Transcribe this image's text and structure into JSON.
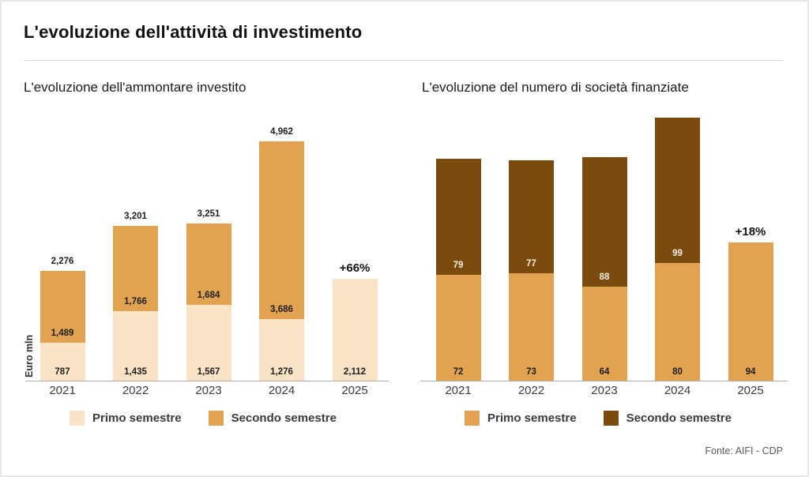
{
  "card": {
    "title": "L'evoluzione dell'attività di investimento",
    "source": "Fonte: AIFI - CDP"
  },
  "colors": {
    "cream": "#FBE4C5",
    "orange": "#E1A351",
    "brown": "#7B4A0D"
  },
  "chart_data": [
    {
      "type": "bar",
      "stacked": true,
      "title": "L'evoluzione dell'ammontare investito",
      "xlabel": "",
      "ylabel": "Euro mln",
      "categories": [
        "2021",
        "2022",
        "2023",
        "2024",
        "2025"
      ],
      "series": [
        {
          "name": "Primo semestre",
          "color": "#FBE4C5",
          "values": [
            787,
            1435,
            1567,
            1276,
            2112
          ],
          "labels": [
            "787",
            "1,435",
            "1,567",
            "1,276",
            "2,112"
          ]
        },
        {
          "name": "Secondo semestre",
          "color": "#E1A351",
          "values": [
            1489,
            1766,
            1684,
            3686,
            null
          ],
          "labels": [
            "1,489",
            "1,766",
            "1,684",
            "3,686",
            null
          ]
        }
      ],
      "totals": [
        "2,276",
        "3,201",
        "3,251",
        "4,962",
        null
      ],
      "annotations": [
        {
          "category": "2025",
          "text": "+66%"
        }
      ],
      "legend_position": "bottom",
      "grid": false
    },
    {
      "type": "bar",
      "stacked": true,
      "title": "L'evoluzione del numero di società finanziate",
      "xlabel": "",
      "ylabel": "",
      "categories": [
        "2021",
        "2022",
        "2023",
        "2024",
        "2025"
      ],
      "series": [
        {
          "name": "Primo semestre",
          "color": "#E1A351",
          "values": [
            72,
            73,
            64,
            80,
            94
          ],
          "labels": [
            "72",
            "73",
            "64",
            "80",
            "94"
          ]
        },
        {
          "name": "Secondo semestre",
          "color": "#7B4A0D",
          "values": [
            79,
            77,
            88,
            99,
            null
          ],
          "labels": [
            "79",
            "77",
            "88",
            "99",
            null
          ]
        }
      ],
      "totals": null,
      "annotations": [
        {
          "category": "2025",
          "text": "+18%"
        }
      ],
      "legend_position": "bottom",
      "grid": false
    }
  ]
}
